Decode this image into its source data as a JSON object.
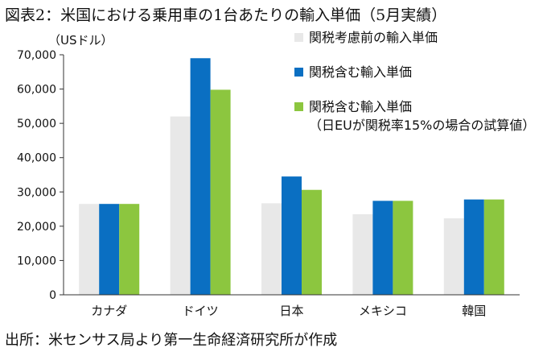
{
  "title": "図表2：米国における乗用車の1台あたりの輸入単価（5月実績）",
  "source": "出所：米センサス局より第一生命経済研究所が作成",
  "chart_data": {
    "type": "bar",
    "unit_label": "（USドル）",
    "categories": [
      "カナダ",
      "ドイツ",
      "日本",
      "メキシコ",
      "韓国"
    ],
    "yticks": [
      "0",
      "10,000",
      "20,000",
      "30,000",
      "40,000",
      "50,000",
      "60,000",
      "70,000"
    ],
    "ylim": [
      0,
      70000
    ],
    "grid": false,
    "legend_position": "top-right",
    "series": [
      {
        "name": "関税考慮前の輸入単価",
        "color": "#e8e8e8",
        "values": [
          26500,
          52000,
          26700,
          23500,
          22300
        ]
      },
      {
        "name": "関税含む輸入単価",
        "color": "#0a6fc2",
        "values": [
          26500,
          69000,
          34500,
          27400,
          27800
        ]
      },
      {
        "name": "関税含む輸入単価\n（日EUが関税率15%の場合の試算値）",
        "color": "#8cc63f",
        "values": [
          26500,
          59800,
          30600,
          27400,
          27800
        ]
      }
    ]
  }
}
